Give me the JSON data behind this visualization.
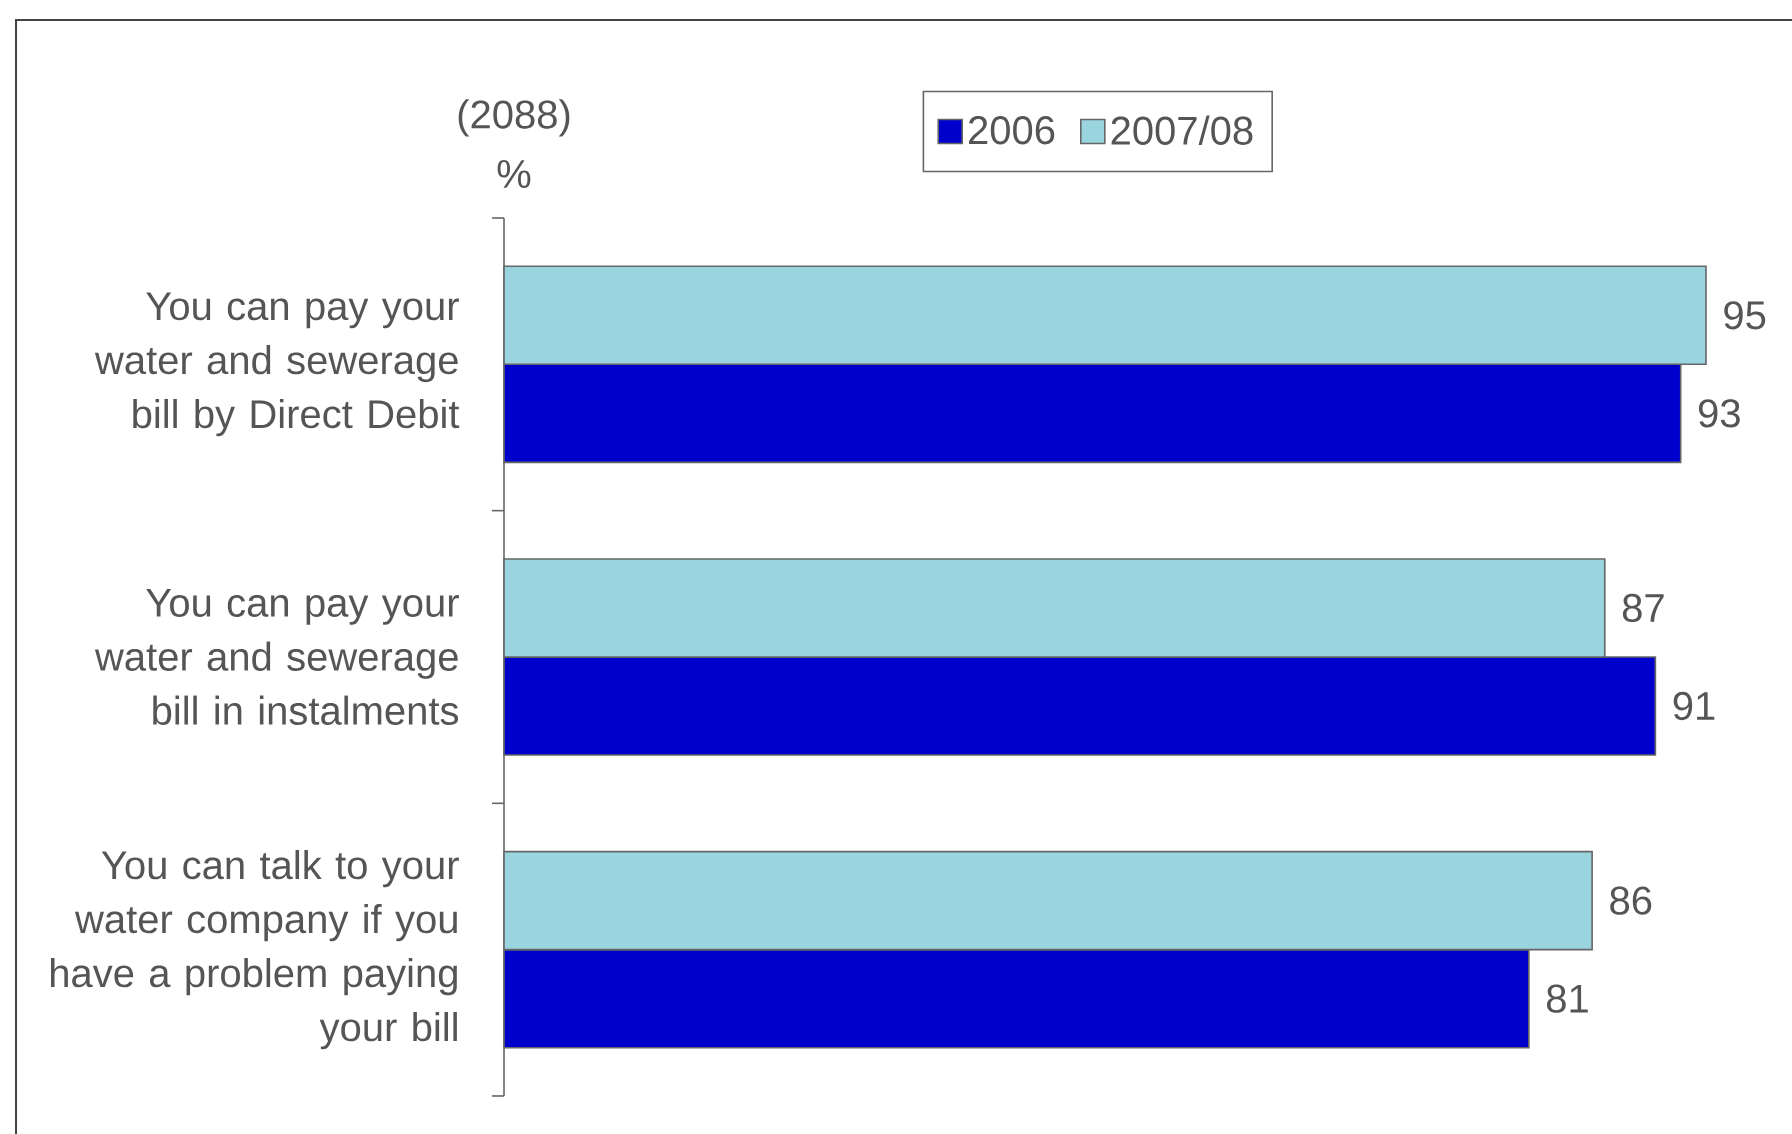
{
  "chart_data": {
    "type": "bar",
    "orientation": "horizontal",
    "categories": [
      "You can pay your water and sewerage bill by Direct Debit",
      "You can pay your water and sewerage bill in instalments",
      "You can talk to your water company if you have a problem paying your bill"
    ],
    "series": [
      {
        "name": "2006",
        "color": "#0000cc",
        "values": [
          93,
          91,
          81
        ]
      },
      {
        "name": "2007/08",
        "color": "#99d4df",
        "values": [
          95,
          87,
          86
        ]
      }
    ],
    "data_labels": true,
    "legend": "top",
    "tick_labels": "y",
    "annotations": [
      "(2088)",
      "%"
    ]
  }
}
